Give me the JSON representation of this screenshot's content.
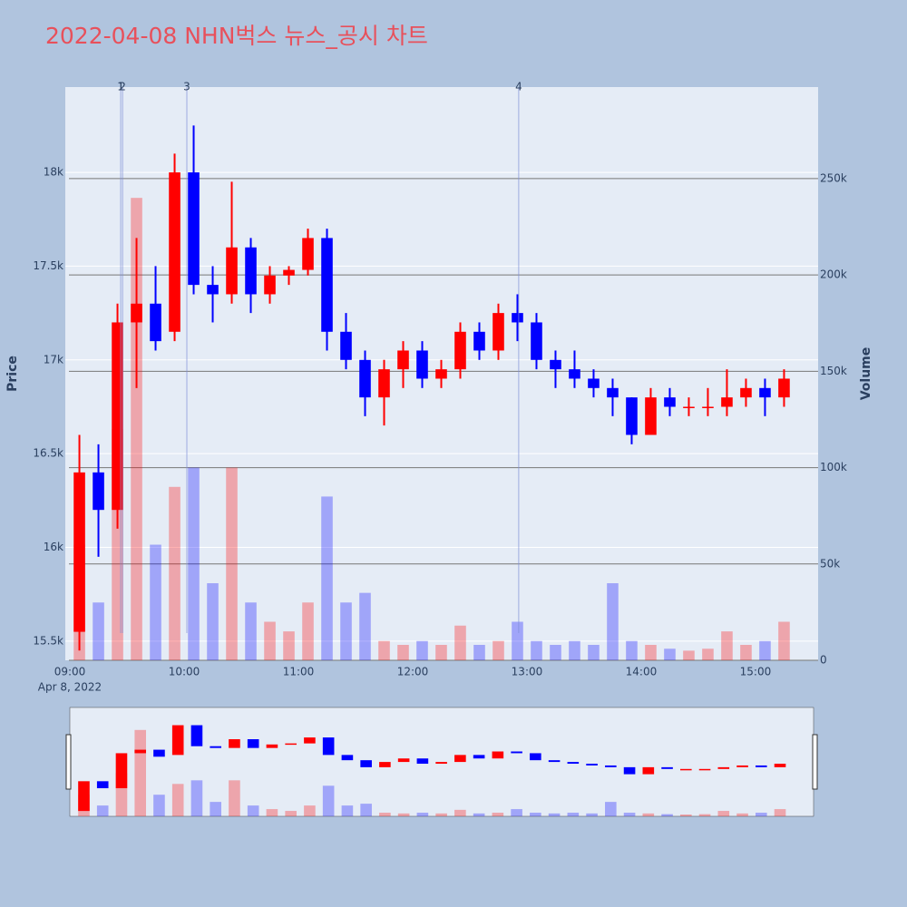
{
  "chart_data": {
    "type": "candlestick",
    "title": "2022-04-08 NHN벅스 뉴스_공시 차트",
    "y_label": "Price",
    "y2_label": "Volume",
    "x_date_label": "Apr 8, 2022",
    "increasing_color": "#ff0000",
    "decreasing_color": "#0000ff",
    "x": [
      "2022-04-08 09:00",
      "2022-04-08 09:10",
      "2022-04-08 09:20",
      "2022-04-08 09:30",
      "2022-04-08 09:40",
      "2022-04-08 09:50",
      "2022-04-08 10:00",
      "2022-04-08 10:10",
      "2022-04-08 10:20",
      "2022-04-08 10:30",
      "2022-04-08 10:40",
      "2022-04-08 10:50",
      "2022-04-08 11:00",
      "2022-04-08 11:10",
      "2022-04-08 11:20",
      "2022-04-08 11:30",
      "2022-04-08 11:40",
      "2022-04-08 11:50",
      "2022-04-08 12:00",
      "2022-04-08 12:10",
      "2022-04-08 12:20",
      "2022-04-08 12:30",
      "2022-04-08 12:40",
      "2022-04-08 12:50",
      "2022-04-08 13:00",
      "2022-04-08 13:10",
      "2022-04-08 13:20",
      "2022-04-08 13:30",
      "2022-04-08 13:40",
      "2022-04-08 13:50",
      "2022-04-08 14:00",
      "2022-04-08 14:10",
      "2022-04-08 14:20",
      "2022-04-08 14:30",
      "2022-04-08 14:40",
      "2022-04-08 14:50",
      "2022-04-08 15:00",
      "2022-04-08 15:10"
    ],
    "open": [
      15550,
      16400,
      16200,
      17200,
      17300,
      17150,
      18000,
      17400,
      17350,
      17600,
      17350,
      17450,
      17480,
      17650,
      17150,
      17000,
      16800,
      16950,
      17050,
      16900,
      16950,
      17150,
      17050,
      17250,
      17200,
      17000,
      16950,
      16900,
      16850,
      16800,
      16600,
      16800,
      16750,
      16750,
      16750,
      16800,
      16850,
      16800
    ],
    "high": [
      16600,
      16550,
      17300,
      17650,
      17500,
      18100,
      18250,
      17500,
      17950,
      17650,
      17500,
      17500,
      17700,
      17700,
      17250,
      17050,
      17000,
      17100,
      17100,
      17000,
      17200,
      17200,
      17300,
      17350,
      17250,
      17050,
      17050,
      16950,
      16900,
      16800,
      16850,
      16850,
      16800,
      16850,
      16950,
      16900,
      16900,
      16950
    ],
    "low": [
      15450,
      15950,
      16100,
      16850,
      17050,
      17100,
      17350,
      17200,
      17300,
      17250,
      17300,
      17400,
      17450,
      17050,
      16950,
      16700,
      16650,
      16850,
      16850,
      16850,
      16900,
      17000,
      17000,
      17100,
      16950,
      16850,
      16850,
      16800,
      16700,
      16550,
      16600,
      16700,
      16700,
      16700,
      16700,
      16750,
      16700,
      16750
    ],
    "close": [
      16400,
      16200,
      17200,
      17300,
      17100,
      18000,
      17400,
      17350,
      17600,
      17350,
      17450,
      17480,
      17650,
      17150,
      17000,
      16800,
      16950,
      17050,
      16900,
      16950,
      17150,
      17050,
      17250,
      17200,
      17000,
      16950,
      16900,
      16850,
      16800,
      16600,
      16800,
      16750,
      16750,
      16750,
      16800,
      16850,
      16800,
      16900
    ],
    "volume": [
      60000,
      30000,
      120000,
      240000,
      60000,
      90000,
      100000,
      40000,
      100000,
      30000,
      20000,
      15000,
      30000,
      85000,
      30000,
      35000,
      10000,
      8000,
      10000,
      8000,
      18000,
      8000,
      10000,
      20000,
      10000,
      8000,
      10000,
      8000,
      40000,
      10000,
      8000,
      6000,
      5000,
      6000,
      15000,
      8000,
      10000,
      20000
    ],
    "xlim": [
      "2022-04-08 08:57:36",
      "2022-04-08 15:32:53"
    ],
    "xticks": [
      {
        "value": "2022-04-08 09:00",
        "label": "09:00"
      },
      {
        "value": "2022-04-08 10:00",
        "label": "10:00"
      },
      {
        "value": "2022-04-08 11:00",
        "label": "11:00"
      },
      {
        "value": "2022-04-08 12:00",
        "label": "12:00"
      },
      {
        "value": "2022-04-08 13:00",
        "label": "13:00"
      },
      {
        "value": "2022-04-08 14:00",
        "label": "14:00"
      },
      {
        "value": "2022-04-08 15:00",
        "label": "15:00"
      }
    ],
    "ylim": [
      15398,
      18455
    ],
    "yticks": [
      {
        "value": 15500,
        "label": "15.5k"
      },
      {
        "value": 16000,
        "label": "16k"
      },
      {
        "value": 16500,
        "label": "16.5k"
      },
      {
        "value": 17000,
        "label": "17k"
      },
      {
        "value": 17500,
        "label": "17.5k"
      },
      {
        "value": 18000,
        "label": "18k"
      }
    ],
    "y2lim": [
      0,
      297500
    ],
    "y2ticks": [
      0,
      {
        "value": 50000,
        "label": "50k"
      },
      {
        "value": 100000,
        "label": "100k"
      },
      {
        "value": 150000,
        "label": "150k"
      },
      {
        "value": 200000,
        "label": "200k"
      },
      {
        "value": 250000,
        "label": "250k"
      }
    ],
    "grid": true,
    "annotations": [
      {
        "x": "2022-04-08 09:26:40",
        "text": "1"
      },
      {
        "x": "2022-04-08 09:27:40",
        "text": "2"
      },
      {
        "x": "2022-04-08 10:01:25",
        "text": "3"
      },
      {
        "x": "2022-04-08 12:55:40",
        "text": "4"
      }
    ]
  }
}
